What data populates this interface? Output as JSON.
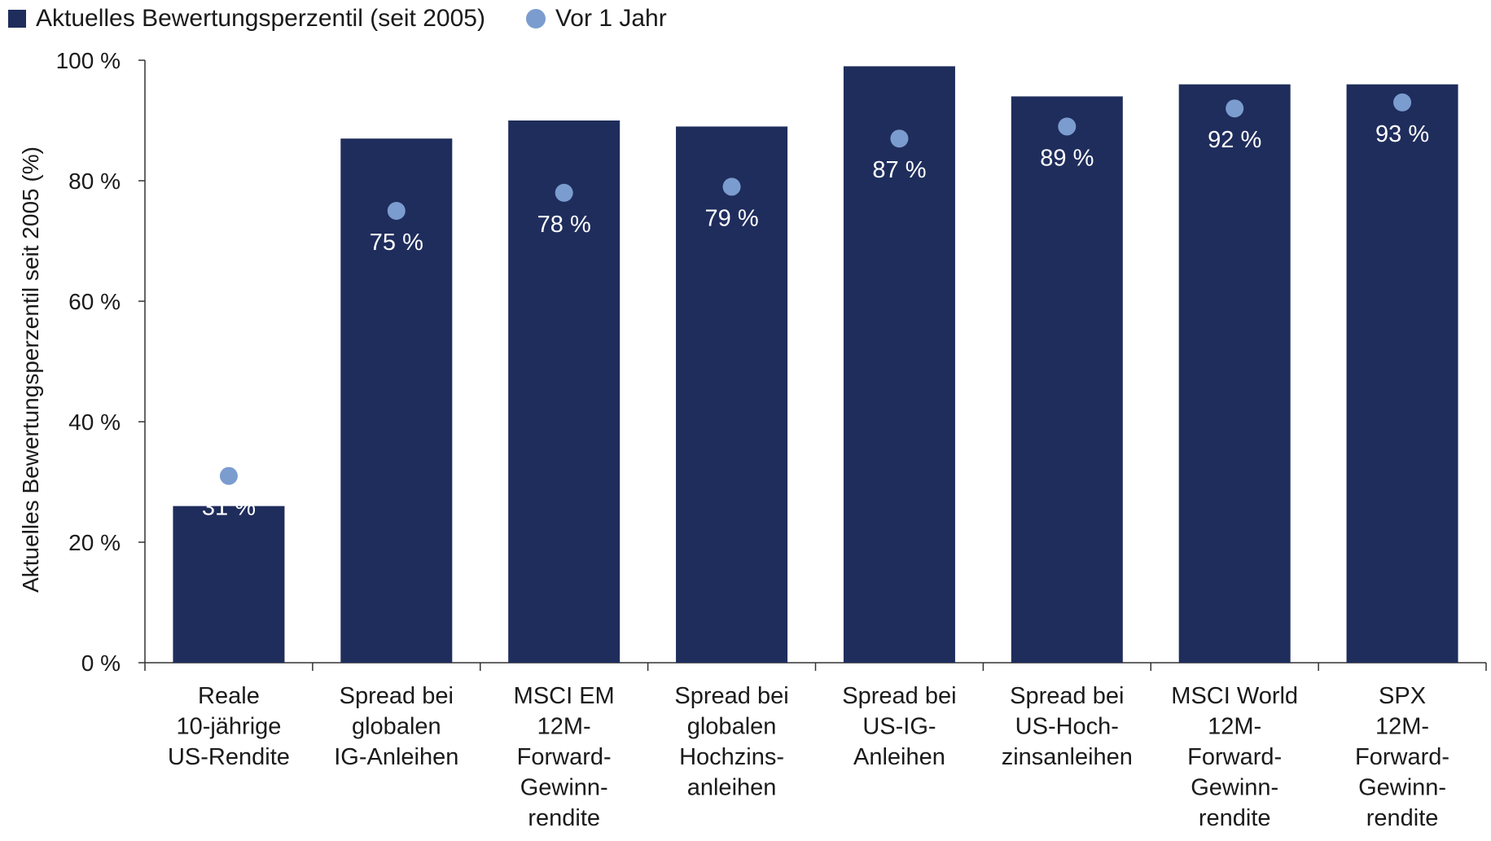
{
  "legend": {
    "bar_label": "Aktuelles Bewertungsperzentil (seit 2005)",
    "dot_label": "Vor 1 Jahr"
  },
  "colors": {
    "bar": "#1f2d5c",
    "dot": "#7b9cce",
    "axis": "#333333",
    "data_label": "#ffffff"
  },
  "chart_data": {
    "type": "bar",
    "ylabel": "Aktuelles Bewertungsperzentil seit 2005 (%)",
    "ylim": [
      0,
      100
    ],
    "yticks": [
      0,
      20,
      40,
      60,
      80,
      100
    ],
    "ytick_labels": [
      "0 %",
      "20 %",
      "40 %",
      "60 %",
      "80 %",
      "100 %"
    ],
    "categories": [
      [
        "Reale",
        "10-jährige",
        "US-Rendite"
      ],
      [
        "Spread bei",
        "globalen",
        "IG-Anleihen"
      ],
      [
        "MSCI EM",
        "12M-",
        "Forward-",
        "Gewinn-",
        "rendite"
      ],
      [
        "Spread bei",
        "globalen",
        "Hochzins-",
        "anleihen"
      ],
      [
        "Spread bei",
        "US-IG-",
        "Anleihen"
      ],
      [
        "Spread bei",
        "US-Hoch-",
        "zinsanleihen"
      ],
      [
        "MSCI World",
        "12M-",
        "Forward-",
        "Gewinn-",
        "rendite"
      ],
      [
        "SPX",
        "12M-",
        "Forward-",
        "Gewinn-",
        "rendite"
      ]
    ],
    "series": [
      {
        "name": "Aktuelles Bewertungsperzentil (seit 2005)",
        "kind": "bar",
        "values": [
          26,
          87,
          90,
          89,
          99,
          94,
          96,
          96
        ]
      },
      {
        "name": "Vor 1 Jahr",
        "kind": "dot",
        "values": [
          31,
          75,
          78,
          79,
          87,
          89,
          92,
          93
        ]
      }
    ],
    "data_labels": [
      "31 %",
      "75 %",
      "78 %",
      "79 %",
      "87 %",
      "89 %",
      "92 %",
      "93 %"
    ],
    "grid": false,
    "legend_position": "top-left"
  }
}
